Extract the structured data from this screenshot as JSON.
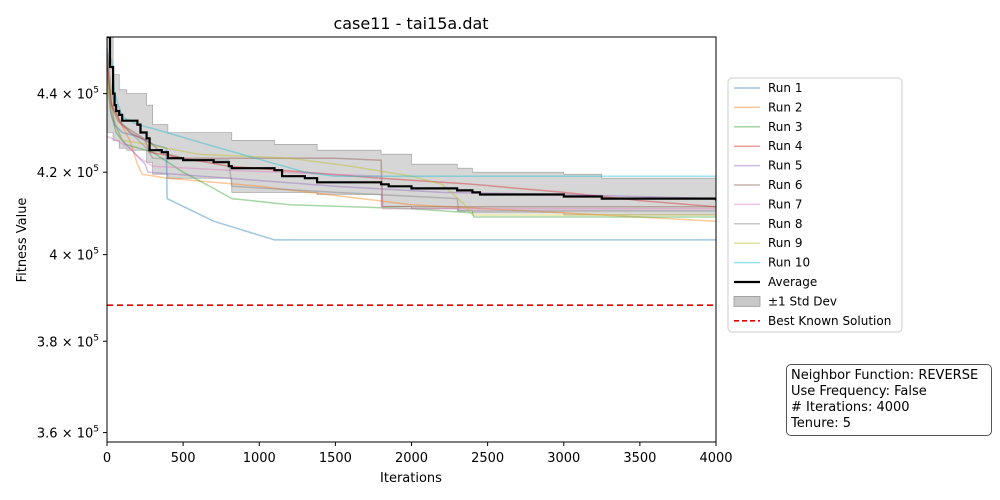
{
  "chart_data": {
    "type": "line",
    "title": "case11 - tai15a.dat",
    "xlabel": "Iterations",
    "ylabel": "Fitness Value",
    "xlim": [
      0,
      4000
    ],
    "ylim": [
      358000,
      455000
    ],
    "x_ticks": [
      0,
      500,
      1000,
      1500,
      2000,
      2500,
      3000,
      3500,
      4000
    ],
    "x_tick_labels": [
      "0",
      "500",
      "1000",
      "1500",
      "2000",
      "2500",
      "3000",
      "3500",
      "4000"
    ],
    "y_ticks": [
      {
        "value": 360000,
        "mantissa": "3.6",
        "exponent": "5"
      },
      {
        "value": 380000,
        "mantissa": "3.8",
        "exponent": "5"
      },
      {
        "value": 400000,
        "mantissa": "4",
        "exponent": "5"
      },
      {
        "value": 420000,
        "mantissa": "4.2",
        "exponent": "5"
      },
      {
        "value": 440000,
        "mantissa": "4.4",
        "exponent": "5"
      }
    ],
    "y_scale": "log",
    "grid": false,
    "legend_position": "right",
    "series": [
      {
        "name": "Run 1",
        "color": "#1f77b4",
        "points": [
          [
            0,
            452000
          ],
          [
            20,
            440000
          ],
          [
            50,
            432000
          ],
          [
            100,
            430000
          ],
          [
            200,
            429000
          ],
          [
            300,
            427000
          ],
          [
            390,
            426000
          ],
          [
            395,
            413500
          ],
          [
            700,
            408000
          ],
          [
            1100,
            403500
          ],
          [
            4000,
            403500
          ]
        ]
      },
      {
        "name": "Run 2",
        "color": "#ff7f0e",
        "points": [
          [
            0,
            448000
          ],
          [
            30,
            438000
          ],
          [
            80,
            433000
          ],
          [
            150,
            428000
          ],
          [
            200,
            422000
          ],
          [
            230,
            419500
          ],
          [
            400,
            418500
          ],
          [
            1000,
            416500
          ],
          [
            2000,
            412000
          ],
          [
            3000,
            410000
          ],
          [
            4000,
            408000
          ]
        ]
      },
      {
        "name": "Run 3",
        "color": "#2ca02c",
        "points": [
          [
            0,
            447000
          ],
          [
            20,
            436000
          ],
          [
            60,
            430000
          ],
          [
            120,
            427000
          ],
          [
            300,
            425000
          ],
          [
            500,
            420000
          ],
          [
            700,
            416000
          ],
          [
            820,
            413500
          ],
          [
            1200,
            412000
          ],
          [
            2000,
            411000
          ],
          [
            2400,
            410000
          ],
          [
            2410,
            409000
          ],
          [
            4000,
            409000
          ]
        ]
      },
      {
        "name": "Run 4",
        "color": "#d62728",
        "points": [
          [
            0,
            451000
          ],
          [
            20,
            438000
          ],
          [
            70,
            433000
          ],
          [
            150,
            430000
          ],
          [
            250,
            428000
          ],
          [
            280,
            425000
          ],
          [
            800,
            421500
          ],
          [
            1800,
            418500
          ],
          [
            2400,
            417000
          ],
          [
            3000,
            415000
          ],
          [
            3500,
            413000
          ],
          [
            4000,
            411500
          ]
        ]
      },
      {
        "name": "Run 5",
        "color": "#9467bd",
        "points": [
          [
            0,
            446000
          ],
          [
            30,
            434000
          ],
          [
            100,
            428000
          ],
          [
            250,
            422000
          ],
          [
            270,
            420000
          ],
          [
            800,
            418500
          ],
          [
            1500,
            416500
          ],
          [
            2200,
            415000
          ],
          [
            3000,
            414500
          ],
          [
            4000,
            413500
          ]
        ]
      },
      {
        "name": "Run 6",
        "color": "#8c564b",
        "points": [
          [
            0,
            447000
          ],
          [
            30,
            437000
          ],
          [
            100,
            432000
          ],
          [
            300,
            427000
          ],
          [
            350,
            425000
          ],
          [
            500,
            423500
          ],
          [
            1500,
            423500
          ],
          [
            1800,
            423000
          ],
          [
            1810,
            411500
          ],
          [
            4000,
            411500
          ]
        ]
      },
      {
        "name": "Run 7",
        "color": "#e377c2",
        "points": [
          [
            0,
            429000
          ],
          [
            60,
            428000
          ],
          [
            150,
            426000
          ],
          [
            200,
            424000
          ],
          [
            300,
            421500
          ],
          [
            800,
            420500
          ],
          [
            1800,
            419000
          ],
          [
            1810,
            411000
          ],
          [
            4000,
            411000
          ]
        ]
      },
      {
        "name": "Run 8",
        "color": "#7f7f7f",
        "points": [
          [
            0,
            452000
          ],
          [
            30,
            440000
          ],
          [
            80,
            433000
          ],
          [
            180,
            429000
          ],
          [
            260,
            426000
          ],
          [
            300,
            423500
          ],
          [
            800,
            423000
          ],
          [
            820,
            416500
          ],
          [
            1500,
            415000
          ],
          [
            2300,
            413500
          ],
          [
            2310,
            410500
          ],
          [
            4000,
            410500
          ]
        ]
      },
      {
        "name": "Run 9",
        "color": "#bcbd22",
        "points": [
          [
            0,
            446000
          ],
          [
            20,
            437000
          ],
          [
            60,
            432000
          ],
          [
            100,
            428000
          ],
          [
            260,
            427000
          ],
          [
            600,
            424500
          ],
          [
            1200,
            423500
          ],
          [
            1600,
            421500
          ],
          [
            2000,
            419000
          ],
          [
            2200,
            417000
          ],
          [
            2350,
            412000
          ],
          [
            2400,
            409500
          ],
          [
            4000,
            409500
          ]
        ]
      },
      {
        "name": "Run 10",
        "color": "#17becf",
        "points": [
          [
            0,
            451000
          ],
          [
            30,
            449000
          ],
          [
            50,
            440000
          ],
          [
            100,
            434000
          ],
          [
            200,
            432000
          ],
          [
            300,
            431000
          ],
          [
            700,
            426500
          ],
          [
            1300,
            420000
          ],
          [
            1500,
            419000
          ],
          [
            4000,
            419000
          ]
        ]
      }
    ],
    "average": {
      "name": "Average",
      "color": "#000000",
      "points": [
        [
          0,
          455000
        ],
        [
          20,
          447000
        ],
        [
          40,
          440000
        ],
        [
          50,
          437000
        ],
        [
          60,
          435500
        ],
        [
          80,
          434500
        ],
        [
          100,
          433000
        ],
        [
          200,
          432000
        ],
        [
          220,
          430000
        ],
        [
          260,
          428500
        ],
        [
          280,
          425500
        ],
        [
          360,
          425000
        ],
        [
          400,
          423500
        ],
        [
          500,
          423000
        ],
        [
          700,
          422500
        ],
        [
          800,
          421500
        ],
        [
          820,
          421000
        ],
        [
          1100,
          420500
        ],
        [
          1150,
          419000
        ],
        [
          1300,
          418500
        ],
        [
          1380,
          417500
        ],
        [
          1800,
          417000
        ],
        [
          1850,
          416500
        ],
        [
          2000,
          416000
        ],
        [
          2300,
          415500
        ],
        [
          2400,
          415000
        ],
        [
          2450,
          414500
        ],
        [
          3000,
          414000
        ],
        [
          3250,
          413500
        ],
        [
          4000,
          413000
        ]
      ]
    },
    "std_band": {
      "name": "±1 Std Dev",
      "color": "#c8c8c8",
      "points": [
        [
          0,
          430000,
          460000
        ],
        [
          40,
          428000,
          445000
        ],
        [
          80,
          426000,
          441000
        ],
        [
          130,
          425500,
          440000
        ],
        [
          260,
          422500,
          437000
        ],
        [
          300,
          419500,
          432000
        ],
        [
          400,
          418500,
          430000
        ],
        [
          820,
          415000,
          428000
        ],
        [
          1100,
          415000,
          427000
        ],
        [
          1380,
          414500,
          425500
        ],
        [
          1800,
          411500,
          424500
        ],
        [
          2000,
          411000,
          422000
        ],
        [
          2300,
          410500,
          421000
        ],
        [
          2400,
          410000,
          420000
        ],
        [
          3000,
          409500,
          419500
        ],
        [
          3250,
          409500,
          418500
        ],
        [
          4000,
          409500,
          418500
        ]
      ]
    },
    "best_known": {
      "name": "Best Known Solution",
      "color": "#e00000",
      "value": 388214
    },
    "info_box": [
      "Neighbor Function: REVERSE",
      "Use Frequency: False",
      "# Iterations: 4000",
      "Tenure: 5"
    ]
  }
}
